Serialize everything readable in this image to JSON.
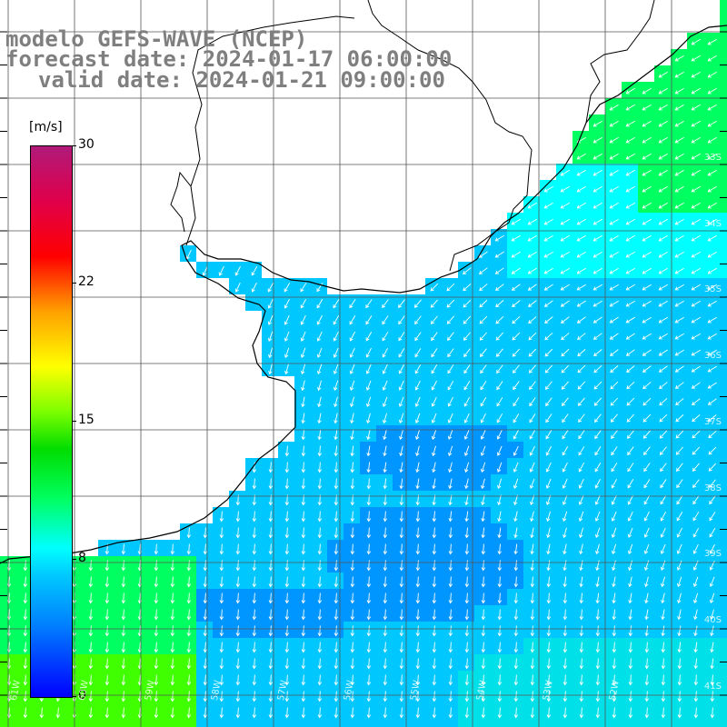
{
  "titles": {
    "line1": "modelo GEFS-WAVE (NCEP)",
    "line2": "forecast date: 2024-01-17 06:00:00",
    "line3": "valid date: 2024-01-21 09:00:00"
  },
  "colorbar": {
    "units": "[m/s]",
    "ticks": [
      "30",
      "22",
      "15",
      "8",
      "0"
    ]
  },
  "lat_labels": [
    "33S",
    "34S",
    "35S",
    "36S",
    "37S",
    "38S",
    "39S",
    "40S",
    "41S"
  ],
  "lon_labels": [
    "61W",
    "60W",
    "59W",
    "58W",
    "57W",
    "56W",
    "55W",
    "54W",
    "53W",
    "52W"
  ],
  "colors": {
    "land": "#ffffff",
    "grid": "#555555",
    "coast": "#000000",
    "ocean_cyan": "#00ffff",
    "ocean_sky": "#00c8ff",
    "ocean_blue": "#0096ff",
    "ocean_green": "#00ff60",
    "ocean_bright_green": "#40ff00",
    "arrow": "#ffffff"
  }
}
